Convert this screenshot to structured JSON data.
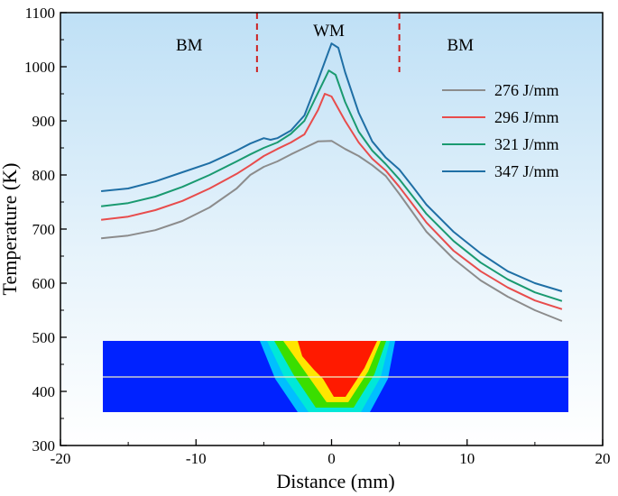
{
  "chart_data": {
    "type": "line",
    "xlabel": "Distance (mm)",
    "ylabel": "Temperature (K)",
    "xlim": [
      -20,
      20
    ],
    "ylim": [
      300,
      1100
    ],
    "xticks": [
      -20,
      -10,
      0,
      10,
      20
    ],
    "yticks": [
      300,
      400,
      500,
      600,
      700,
      800,
      900,
      1000,
      1100
    ],
    "legend_position": "right",
    "background": "gradient-light-blue",
    "regions": [
      {
        "label": "BM",
        "x": -10.5
      },
      {
        "label": "WM",
        "x": -0.2
      },
      {
        "label": "BM",
        "x": 9.5
      }
    ],
    "boundaries": [
      -5.5,
      5.0
    ],
    "boundary_color": "#cc2222",
    "inset": "color temperature field of weld cross-section (blue base metal, red/yellow/green weld pool) with horizontal sampling line",
    "series": [
      {
        "name": "276 J/mm",
        "color": "#8c8c8c",
        "x": [
          -17,
          -15,
          -13,
          -11,
          -9,
          -7,
          -6,
          -5,
          -4,
          -3,
          -2,
          -1,
          0,
          1,
          2,
          3,
          4,
          5,
          6,
          7,
          9,
          11,
          13,
          15,
          17
        ],
        "y": [
          683,
          688,
          698,
          715,
          740,
          775,
          800,
          815,
          825,
          838,
          850,
          862,
          863,
          848,
          835,
          818,
          798,
          765,
          730,
          695,
          645,
          605,
          575,
          550,
          530
        ]
      },
      {
        "name": "296 J/mm",
        "color": "#e84c4c",
        "x": [
          -17,
          -15,
          -13,
          -11,
          -9,
          -7,
          -6,
          -5,
          -4,
          -3,
          -2,
          -1,
          -0.5,
          0,
          1,
          2,
          3,
          4,
          5,
          6,
          7,
          9,
          11,
          13,
          15,
          17
        ],
        "y": [
          717,
          723,
          735,
          752,
          775,
          802,
          818,
          835,
          848,
          860,
          875,
          920,
          950,
          945,
          900,
          860,
          830,
          808,
          778,
          745,
          712,
          660,
          622,
          592,
          568,
          552
        ]
      },
      {
        "name": "321 J/mm",
        "color": "#1a9a70",
        "x": [
          -17,
          -15,
          -13,
          -11,
          -9,
          -7,
          -6,
          -5,
          -4,
          -3,
          -2,
          -1,
          -0.2,
          0.3,
          1,
          2,
          3,
          4,
          5,
          6,
          7,
          9,
          11,
          13,
          15,
          17
        ],
        "y": [
          742,
          748,
          760,
          778,
          800,
          825,
          838,
          850,
          860,
          876,
          900,
          952,
          993,
          985,
          935,
          880,
          845,
          820,
          792,
          760,
          728,
          678,
          638,
          607,
          583,
          567
        ]
      },
      {
        "name": "347 J/mm",
        "color": "#1f6fa5",
        "x": [
          -17,
          -15,
          -13,
          -11,
          -9,
          -7,
          -6,
          -5,
          -4.5,
          -4,
          -3,
          -2,
          -1,
          0,
          0.5,
          1,
          2,
          3,
          4,
          5,
          6,
          7,
          9,
          11,
          13,
          15,
          17
        ],
        "y": [
          770,
          775,
          788,
          805,
          822,
          845,
          858,
          868,
          865,
          868,
          882,
          910,
          975,
          1043,
          1035,
          990,
          915,
          862,
          832,
          810,
          778,
          745,
          695,
          655,
          622,
          600,
          585
        ]
      }
    ]
  }
}
